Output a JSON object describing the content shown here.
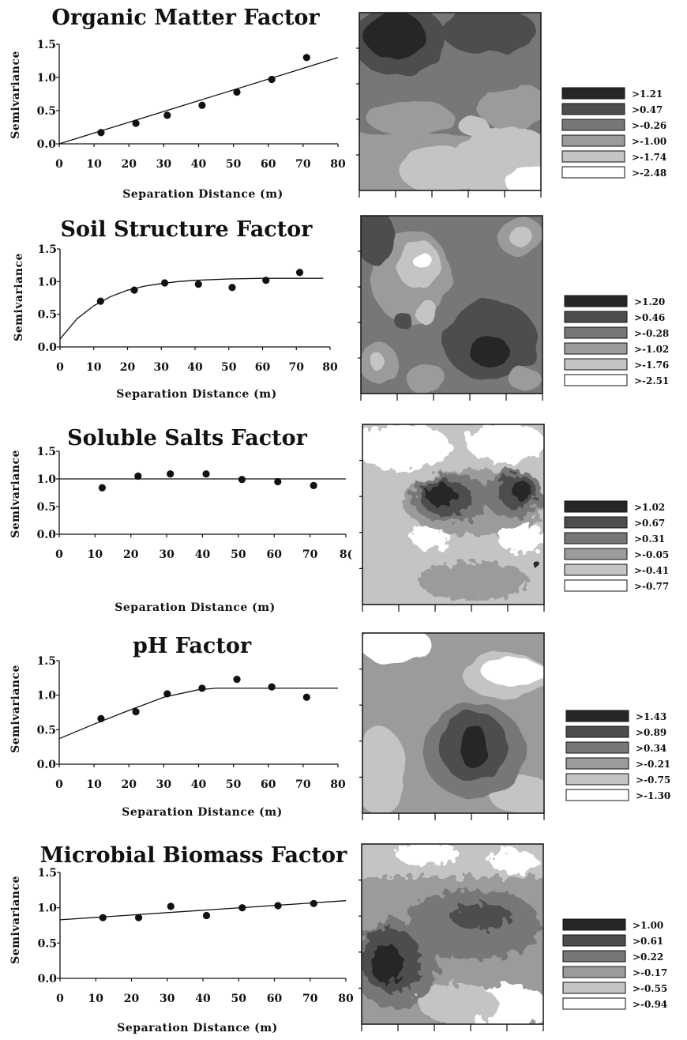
{
  "chart_data": [
    {
      "type": "scatter",
      "title": "Organic Matter Factor",
      "xlabel": "Separation Distance (m)",
      "ylabel": "Semivariance",
      "xlim": [
        0,
        80
      ],
      "ylim": [
        0,
        1.5
      ],
      "x_ticks": [
        "0",
        "10",
        "20",
        "30",
        "40",
        "50",
        "60",
        "70",
        "80"
      ],
      "y_ticks": [
        "0.0",
        "0.5",
        "1.0",
        "1.5"
      ],
      "points": [
        [
          12,
          0.17
        ],
        [
          22,
          0.31
        ],
        [
          31,
          0.43
        ],
        [
          41,
          0.58
        ],
        [
          51,
          0.78
        ],
        [
          61,
          0.97
        ],
        [
          71,
          1.3
        ]
      ],
      "fit_model": "linear",
      "fit_curve": [
        [
          0,
          0.0
        ],
        [
          80,
          1.3
        ]
      ],
      "legend_title": "",
      "legend": [
        ">1.21",
        ">0.47",
        ">-0.26",
        ">-1.00",
        ">-1.74",
        ">-2.48"
      ],
      "legend_colors": [
        "#262626",
        "#4d4d4d",
        "#777777",
        "#9b9b9b",
        "#c4c4c4",
        "#ffffff"
      ]
    },
    {
      "type": "scatter",
      "title": "Soil Structure Factor",
      "xlabel": "Separation Distance (m)",
      "ylabel": "Semivariance",
      "xlim": [
        0,
        80
      ],
      "ylim": [
        0,
        1.5
      ],
      "x_ticks": [
        "0",
        "10",
        "20",
        "30",
        "40",
        "50",
        "60",
        "70",
        "80"
      ],
      "y_ticks": [
        "0.0",
        "0.5",
        "1.0",
        "1.5"
      ],
      "points": [
        [
          12,
          0.7
        ],
        [
          22,
          0.87
        ],
        [
          31,
          0.98
        ],
        [
          41,
          0.96
        ],
        [
          51,
          0.91
        ],
        [
          61,
          1.02
        ],
        [
          71,
          1.14
        ]
      ],
      "fit_model": "exponential",
      "fit_curve": [
        [
          0,
          0.12
        ],
        [
          5,
          0.43
        ],
        [
          10,
          0.63
        ],
        [
          15,
          0.77
        ],
        [
          20,
          0.87
        ],
        [
          25,
          0.93
        ],
        [
          30,
          0.97
        ],
        [
          35,
          1.0
        ],
        [
          40,
          1.02
        ],
        [
          50,
          1.04
        ],
        [
          60,
          1.05
        ],
        [
          70,
          1.05
        ],
        [
          78,
          1.05
        ]
      ],
      "legend": [
        ">1.20",
        ">0.46",
        ">-0.28",
        ">-1.02",
        ">-1.76",
        ">-2.51"
      ],
      "legend_colors": [
        "#262626",
        "#4d4d4d",
        "#777777",
        "#9b9b9b",
        "#c4c4c4",
        "#ffffff"
      ]
    },
    {
      "type": "scatter",
      "title": "Soluble Salts Factor",
      "xlabel": "Separation Distance (m)",
      "ylabel": "Semivariance",
      "xlim": [
        0,
        80
      ],
      "ylim": [
        0,
        1.5
      ],
      "x_ticks": [
        "0",
        "10",
        "20",
        "30",
        "40",
        "50",
        "60",
        "70",
        "8("
      ],
      "y_ticks": [
        "0.0",
        "0.5",
        "1.0",
        "1.5"
      ],
      "points": [
        [
          12,
          0.84
        ],
        [
          22,
          1.05
        ],
        [
          31,
          1.09
        ],
        [
          41,
          1.09
        ],
        [
          51,
          0.99
        ],
        [
          61,
          0.95
        ],
        [
          71,
          0.88
        ]
      ],
      "fit_model": "nugget",
      "fit_curve": [
        [
          0,
          1.0
        ],
        [
          80,
          1.0
        ]
      ],
      "legend": [
        ">1.02",
        ">0.67",
        ">0.31",
        ">-0.05",
        ">-0.41",
        ">-0.77"
      ],
      "legend_colors": [
        "#262626",
        "#4d4d4d",
        "#777777",
        "#9b9b9b",
        "#c4c4c4",
        "#ffffff"
      ]
    },
    {
      "type": "scatter",
      "title": "pH Factor",
      "xlabel": "Separation Distance (m)",
      "ylabel": "Semivariance",
      "xlim": [
        0,
        80
      ],
      "ylim": [
        0,
        1.5
      ],
      "x_ticks": [
        "0",
        "10",
        "20",
        "30",
        "40",
        "50",
        "60",
        "70",
        "80"
      ],
      "y_ticks": [
        "0.0",
        "0.5",
        "1.0",
        "1.5"
      ],
      "points": [
        [
          12,
          0.66
        ],
        [
          22,
          0.76
        ],
        [
          31,
          1.02
        ],
        [
          41,
          1.1
        ],
        [
          51,
          1.23
        ],
        [
          61,
          1.12
        ],
        [
          71,
          0.97
        ]
      ],
      "fit_model": "spherical",
      "fit_curve": [
        [
          0,
          0.37
        ],
        [
          10,
          0.58
        ],
        [
          20,
          0.78
        ],
        [
          30,
          0.97
        ],
        [
          40,
          1.08
        ],
        [
          45,
          1.1
        ],
        [
          80,
          1.1
        ]
      ],
      "legend": [
        ">1.43",
        ">0.89",
        ">0.34",
        ">-0.21",
        ">-0.75",
        ">-1.30"
      ],
      "legend_colors": [
        "#262626",
        "#4d4d4d",
        "#777777",
        "#9b9b9b",
        "#c4c4c4",
        "#ffffff"
      ]
    },
    {
      "type": "scatter",
      "title": "Microbial Biomass Factor",
      "xlabel": "Separation Distance (m)",
      "ylabel": "Semivariance",
      "xlim": [
        0,
        80
      ],
      "ylim": [
        0,
        1.5
      ],
      "x_ticks": [
        "0",
        "10",
        "20",
        "30",
        "40",
        "50",
        "60",
        "70",
        "80"
      ],
      "y_ticks": [
        "0.0",
        "0.5",
        "1.0",
        "1.5"
      ],
      "points": [
        [
          12,
          0.86
        ],
        [
          22,
          0.86
        ],
        [
          31,
          1.02
        ],
        [
          41,
          0.89
        ],
        [
          51,
          1.0
        ],
        [
          61,
          1.03
        ],
        [
          71,
          1.06
        ]
      ],
      "fit_model": "linear",
      "fit_curve": [
        [
          0,
          0.83
        ],
        [
          80,
          1.1
        ]
      ],
      "legend": [
        ">1.00",
        ">0.61",
        ">0.22",
        ">-0.17",
        ">-0.55",
        ">-0.94"
      ],
      "legend_colors": [
        "#262626",
        "#4d4d4d",
        "#777777",
        "#9b9b9b",
        "#c4c4c4",
        "#ffffff"
      ]
    }
  ]
}
